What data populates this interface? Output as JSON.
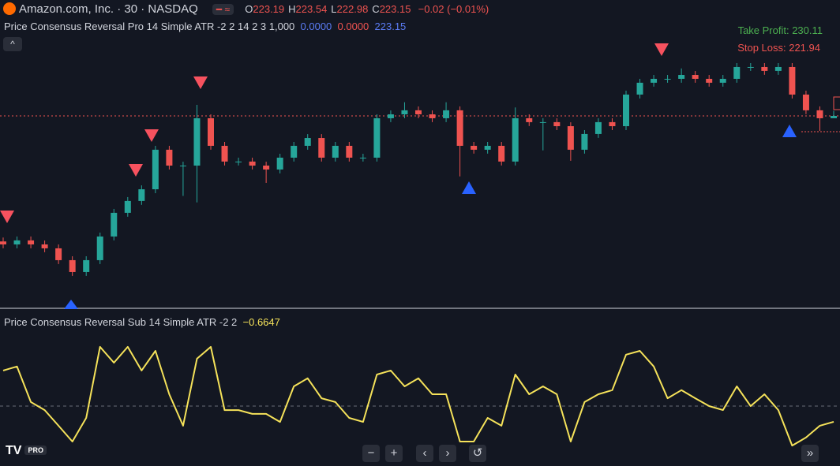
{
  "header": {
    "symbol": "Amazon.com, Inc. · 30 · NASDAQ",
    "ohlc": [
      {
        "label": "O",
        "value": "223.19"
      },
      {
        "label": "H",
        "value": "223.54"
      },
      {
        "label": "L",
        "value": "222.98"
      },
      {
        "label": "C",
        "value": "223.15"
      }
    ],
    "change": "−0.02 (−0.01%)"
  },
  "indicator": {
    "title": "Price Consensus Reversal Pro 14 Simple ATR -2 2 14 2 3 1,000",
    "values": [
      "0.0000",
      "0.0000",
      "223.15"
    ]
  },
  "levels": {
    "take_profit": "Take Profit: 230.11",
    "stop_loss": "Stop Loss: 221.94"
  },
  "sub_indicator": {
    "title": "Price Consensus Reversal Sub 14 Simple ATR -2 2",
    "value": "−0.6647"
  },
  "footer": {
    "badge": "PRO"
  },
  "chart_data": [
    {
      "type": "candlestick",
      "up_color": "#26a69a",
      "down_color": "#ef5350",
      "ylim": [
        208.42,
        232.06
      ],
      "open": [
        213.5,
        213.27,
        213.58,
        213.27,
        212.97,
        212.06,
        211.15,
        212.06,
        213.88,
        215.7,
        216.61,
        217.51,
        220.55,
        219.33,
        219.33,
        222.97,
        220.85,
        219.64,
        219.64,
        219.33,
        219.03,
        219.94,
        220.85,
        221.45,
        219.94,
        220.85,
        219.94,
        219.94,
        222.97,
        223.27,
        223.58,
        223.27,
        222.97,
        223.58,
        220.85,
        220.55,
        220.85,
        219.64,
        222.97,
        222.67,
        222.67,
        222.36,
        220.55,
        221.76,
        222.67,
        222.36,
        224.79,
        225.7,
        226.0,
        226.0,
        226.3,
        226.0,
        225.7,
        226.0,
        226.91,
        226.91,
        226.61,
        226.91,
        224.79,
        223.58,
        222.97
      ],
      "high": [
        213.8,
        213.88,
        213.88,
        213.57,
        213.27,
        212.36,
        212.36,
        214.18,
        216.0,
        216.91,
        217.81,
        220.85,
        220.85,
        219.63,
        224.0,
        223.27,
        221.15,
        219.94,
        219.94,
        219.63,
        220.24,
        221.15,
        221.75,
        221.75,
        221.15,
        221.15,
        220.24,
        223.27,
        223.57,
        224.2,
        223.88,
        223.57,
        224.2,
        223.88,
        221.15,
        221.15,
        221.15,
        223.8,
        223.27,
        222.97,
        222.97,
        222.66,
        222.06,
        222.97,
        222.97,
        225.09,
        226.0,
        226.3,
        226.3,
        226.8,
        226.6,
        226.3,
        226.3,
        227.21,
        227.21,
        227.21,
        227.21,
        227.21,
        225.09,
        223.88,
        223.54
      ],
      "low": [
        212.97,
        212.97,
        212.97,
        212.67,
        211.76,
        210.85,
        210.85,
        211.76,
        213.58,
        215.4,
        216.31,
        217.21,
        219.03,
        217.0,
        216.5,
        220.55,
        219.34,
        219.34,
        219.03,
        218.0,
        218.73,
        219.64,
        220.55,
        219.64,
        219.64,
        219.64,
        219.64,
        219.64,
        222.67,
        222.97,
        222.97,
        222.67,
        222.67,
        218.5,
        220.25,
        220.25,
        219.34,
        219.34,
        222.37,
        220.5,
        222.06,
        219.7,
        220.25,
        221.46,
        222.06,
        222.06,
        224.49,
        225.4,
        225.7,
        225.7,
        225.7,
        225.4,
        225.4,
        225.7,
        226.61,
        226.31,
        226.31,
        224.49,
        223.28,
        222.0,
        222.98
      ],
      "close": [
        213.27,
        213.58,
        213.27,
        212.97,
        212.06,
        211.15,
        212.06,
        213.88,
        215.7,
        216.61,
        217.51,
        220.55,
        219.33,
        219.33,
        222.97,
        220.85,
        219.64,
        219.64,
        219.33,
        219.03,
        219.94,
        220.85,
        221.45,
        219.94,
        220.85,
        219.94,
        219.94,
        222.97,
        223.27,
        223.58,
        223.27,
        222.97,
        223.58,
        220.85,
        220.55,
        220.85,
        219.64,
        222.97,
        222.67,
        222.67,
        222.36,
        220.55,
        221.76,
        222.67,
        222.36,
        224.79,
        225.7,
        226.0,
        226.0,
        226.3,
        226.0,
        225.7,
        226.0,
        226.91,
        226.91,
        226.61,
        226.91,
        224.79,
        223.58,
        222.97,
        223.15
      ]
    },
    {
      "type": "line",
      "color": "#f5e25a",
      "ylim": [
        -2.5,
        3.83
      ],
      "values": [
        1.5,
        1.67,
        0.17,
        -0.17,
        -0.83,
        -1.5,
        -0.5,
        2.5,
        1.83,
        2.5,
        1.5,
        2.33,
        0.5,
        -0.83,
        2.0,
        2.5,
        -0.17,
        -0.17,
        -0.33,
        -0.33,
        -0.67,
        0.83,
        1.17,
        0.33,
        0.17,
        -0.5,
        -0.67,
        1.33,
        1.5,
        0.83,
        1.17,
        0.5,
        0.5,
        -1.5,
        -1.5,
        -0.5,
        -0.83,
        1.33,
        0.5,
        0.83,
        0.5,
        -1.5,
        0.17,
        0.5,
        0.67,
        2.17,
        2.33,
        1.67,
        0.33,
        0.67,
        0.33,
        0,
        -0.17,
        0.83,
        0,
        0.5,
        -0.17,
        -1.67,
        -1.33,
        -0.83,
        -0.6647
      ]
    }
  ]
}
